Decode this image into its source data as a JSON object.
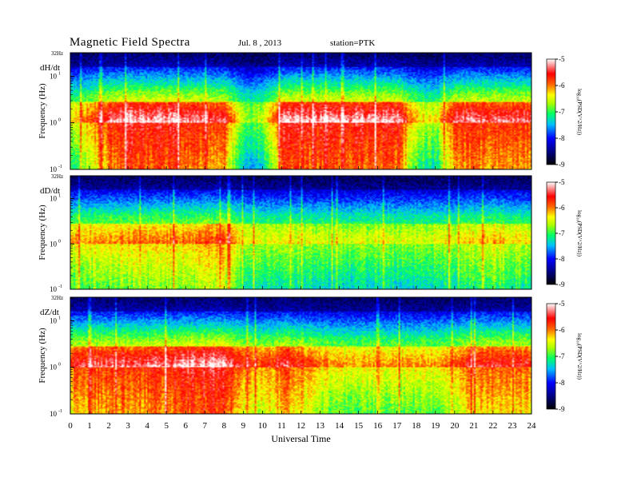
{
  "header": {
    "title": "Magnetic  Field  Spectra",
    "date": "Jul.  8  , 2013",
    "station": "station=PTK"
  },
  "chart_data": [
    {
      "type": "heatmap",
      "panel_label": "dH/dt",
      "ylabel": "Frequency  (Hz)",
      "yscale": "log",
      "ylim": [
        0.1,
        32
      ],
      "yticks": [
        {
          "value": 10,
          "label": "10"
        },
        {
          "value": 1,
          "label": "10"
        },
        {
          "value": 0.1,
          "label": "10"
        }
      ],
      "ytick_exponents": [
        "1",
        "0",
        "-1"
      ],
      "top_label": "32Hz",
      "xlim": [
        0,
        24
      ],
      "colorbar": {
        "label": "log10(PSD(V^2/Hz))",
        "label_text": "log₁₀(PSD(V^2/Hz))",
        "range": [
          -9,
          -5
        ],
        "ticks": [
          "-5",
          "-6",
          "-7",
          "-8",
          "-9"
        ]
      },
      "band_strength_by_hour": [
        0.55,
        0.7,
        0.85,
        0.95,
        0.9,
        0.9,
        0.9,
        0.85,
        0.85,
        0.4,
        0.45,
        0.9,
        0.9,
        0.9,
        0.9,
        0.9,
        0.9,
        0.9,
        0.55,
        0.5,
        0.85,
        0.85,
        0.85,
        0.85
      ]
    },
    {
      "type": "heatmap",
      "panel_label": "dD/dt",
      "ylabel": "Frequency  (Hz)",
      "yscale": "log",
      "ylim": [
        0.1,
        32
      ],
      "yticks": [
        {
          "value": 10,
          "label": "10"
        },
        {
          "value": 1,
          "label": "10"
        },
        {
          "value": 0.1,
          "label": "10"
        }
      ],
      "ytick_exponents": [
        "1",
        "0",
        "-1"
      ],
      "top_label": "32Hz",
      "xlim": [
        0,
        24
      ],
      "colorbar": {
        "label": "log10(PSD(V^2/Hz))",
        "label_text": "log₁₀(PSD(V^2/Hz))",
        "range": [
          -9,
          -5
        ],
        "ticks": [
          "-5",
          "-6",
          "-7",
          "-8",
          "-9"
        ]
      },
      "band_strength_by_hour": [
        0.6,
        0.62,
        0.62,
        0.65,
        0.62,
        0.66,
        0.66,
        0.7,
        0.7,
        0.5,
        0.5,
        0.5,
        0.5,
        0.48,
        0.48,
        0.48,
        0.48,
        0.48,
        0.48,
        0.5,
        0.5,
        0.55,
        0.6,
        0.55
      ]
    },
    {
      "type": "heatmap",
      "panel_label": "dZ/dt",
      "ylabel": "Frequency  (Hz)",
      "yscale": "log",
      "ylim": [
        0.1,
        32
      ],
      "yticks": [
        {
          "value": 10,
          "label": "10"
        },
        {
          "value": 1,
          "label": "10"
        },
        {
          "value": 0.1,
          "label": "10"
        }
      ],
      "ytick_exponents": [
        "1",
        "0",
        "-1"
      ],
      "top_label": "32Hz",
      "xlim": [
        0,
        24
      ],
      "colorbar": {
        "label": "log10(PSD(V^2/Hz))",
        "label_text": "log₁₀(PSD(V^2/Hz))",
        "range": [
          -9,
          -5
        ],
        "ticks": [
          "-5",
          "-6",
          "-7",
          "-8",
          "-9"
        ]
      },
      "band_strength_by_hour": [
        0.8,
        0.82,
        0.85,
        0.85,
        0.85,
        0.88,
        0.9,
        0.92,
        0.92,
        0.75,
        0.7,
        0.82,
        0.75,
        0.65,
        0.62,
        0.62,
        0.62,
        0.62,
        0.62,
        0.62,
        0.68,
        0.78,
        0.8,
        0.78
      ]
    }
  ],
  "xaxis": {
    "label": "Universal  Time",
    "ticks": [
      "0",
      "1",
      "2",
      "3",
      "4",
      "5",
      "6",
      "7",
      "8",
      "9",
      "10",
      "11",
      "12",
      "13",
      "14",
      "15",
      "16",
      "17",
      "18",
      "19",
      "20",
      "21",
      "22",
      "23",
      "24"
    ]
  },
  "colors": {
    "axis": "#000000",
    "background": "#ffffff"
  }
}
